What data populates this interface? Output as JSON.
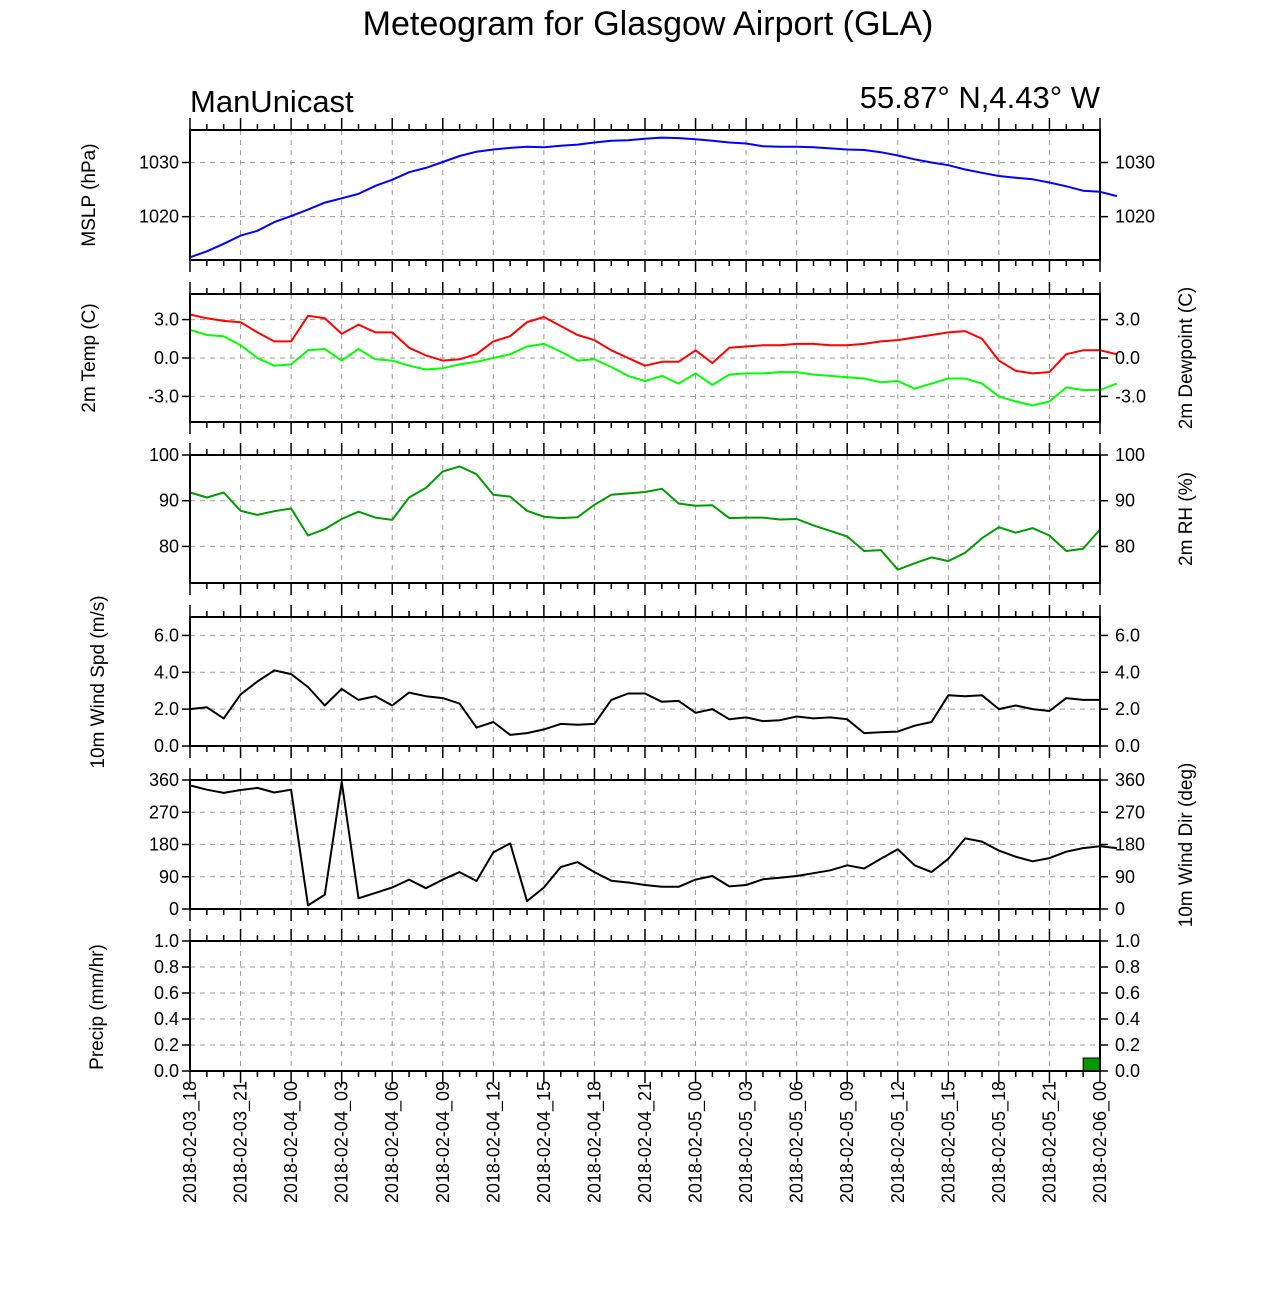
{
  "figure": {
    "title": "Meteogram for Glasgow Airport (GLA)",
    "model": "ManUnicast",
    "location": "55.87° N,4.43° W"
  },
  "time_axis": {
    "labels": [
      "2018-02-03_18",
      "2018-02-03_21",
      "2018-02-04_00",
      "2018-02-04_03",
      "2018-02-04_06",
      "2018-02-04_09",
      "2018-02-04_12",
      "2018-02-04_15",
      "2018-02-04_18",
      "2018-02-04_21",
      "2018-02-05_00",
      "2018-02-05_03",
      "2018-02-05_06",
      "2018-02-05_09",
      "2018-02-05_12",
      "2018-02-05_15",
      "2018-02-05_18",
      "2018-02-05_21",
      "2018-02-06_00"
    ],
    "range_hours": [
      0,
      54
    ],
    "step_hours": 1
  },
  "colors": {
    "mslp": "#0000ff",
    "temp": "#ff0000",
    "dewpoint": "#00ff00",
    "rh": "#009900",
    "wind": "#000000",
    "precip_fill": "#009900",
    "grid": "#9a9a9a"
  },
  "chart_data": [
    {
      "type": "line",
      "id": "mslp",
      "ylabel_left": "MSLP (hPa)",
      "ylim": [
        1012,
        1036
      ],
      "ticks": [
        1020,
        1030
      ],
      "tick_labels": [
        "1020",
        "1030"
      ],
      "right_ticks": true,
      "grid": true,
      "series": [
        {
          "color": "#0000ff",
          "values": [
            1012.5,
            1013.6,
            1015.0,
            1016.5,
            1017.4,
            1019.0,
            1020.1,
            1021.3,
            1022.6,
            1023.4,
            1024.2,
            1025.7,
            1026.8,
            1028.2,
            1029.0,
            1030.1,
            1031.2,
            1032.0,
            1032.4,
            1032.7,
            1032.9,
            1032.8,
            1033.1,
            1033.3,
            1033.7,
            1034.0,
            1034.1,
            1034.4,
            1034.6,
            1034.5,
            1034.3,
            1034.0,
            1033.7,
            1033.5,
            1033.0,
            1032.9,
            1032.9,
            1032.8,
            1032.6,
            1032.4,
            1032.3,
            1031.9,
            1031.3,
            1030.6,
            1030.0,
            1029.5,
            1028.7,
            1028.1,
            1027.5,
            1027.2,
            1026.9,
            1026.3,
            1025.6,
            1024.8,
            1024.6,
            1023.8
          ]
        }
      ]
    },
    {
      "type": "line",
      "id": "temp",
      "ylabel_left": "2m Temp (C)",
      "ylabel_right": "2m Dewpoint (C)",
      "ylim": [
        -5,
        5
      ],
      "ticks": [
        -3,
        0,
        3
      ],
      "tick_labels": [
        "-3.0",
        "0.0",
        "3.0"
      ],
      "right_ticks": true,
      "grid": true,
      "series": [
        {
          "color": "#ff0000",
          "values": [
            3.4,
            3.1,
            2.9,
            2.8,
            2.0,
            1.3,
            1.3,
            3.3,
            3.1,
            1.9,
            2.6,
            2.0,
            2.0,
            0.8,
            0.2,
            -0.2,
            -0.1,
            0.3,
            1.3,
            1.7,
            2.8,
            3.2,
            2.5,
            1.8,
            1.4,
            0.6,
            0.0,
            -0.6,
            -0.3,
            -0.3,
            0.6,
            -0.4,
            0.8,
            0.9,
            1.0,
            1.0,
            1.1,
            1.1,
            1.0,
            1.0,
            1.1,
            1.3,
            1.4,
            1.6,
            1.8,
            2.0,
            2.1,
            1.5,
            -0.2,
            -1.0,
            -1.2,
            -1.1,
            0.3,
            0.6,
            0.6,
            0.3
          ]
        },
        {
          "color": "#00ff00",
          "values": [
            2.2,
            1.8,
            1.7,
            1.0,
            0.0,
            -0.6,
            -0.5,
            0.6,
            0.7,
            -0.2,
            0.7,
            -0.1,
            -0.2,
            -0.6,
            -0.9,
            -0.8,
            -0.5,
            -0.3,
            0.0,
            0.3,
            0.9,
            1.1,
            0.5,
            -0.2,
            -0.1,
            -0.7,
            -1.4,
            -1.8,
            -1.4,
            -2.0,
            -1.2,
            -2.1,
            -1.3,
            -1.2,
            -1.2,
            -1.1,
            -1.1,
            -1.3,
            -1.4,
            -1.5,
            -1.6,
            -1.9,
            -1.8,
            -2.4,
            -2.0,
            -1.6,
            -1.6,
            -2.0,
            -3.0,
            -3.4,
            -3.7,
            -3.4,
            -2.3,
            -2.5,
            -2.5,
            -2.0
          ]
        }
      ]
    },
    {
      "type": "line",
      "id": "rh",
      "ylabel_right": "2m RH (%)",
      "ylim": [
        72,
        100
      ],
      "ticks": [
        80,
        90,
        100
      ],
      "tick_labels": [
        "80",
        "90",
        "100"
      ],
      "right_ticks": true,
      "grid": true,
      "series": [
        {
          "color": "#009900",
          "values": [
            91.8,
            90.7,
            91.8,
            87.8,
            86.9,
            87.7,
            88.3,
            82.4,
            83.8,
            86.0,
            87.6,
            86.3,
            85.8,
            90.7,
            92.8,
            96.4,
            97.5,
            95.8,
            91.3,
            90.9,
            87.8,
            86.5,
            86.2,
            86.4,
            89.1,
            91.3,
            91.6,
            91.9,
            92.6,
            89.4,
            88.9,
            89.0,
            86.2,
            86.3,
            86.3,
            85.9,
            86.0,
            84.6,
            83.4,
            82.2,
            79.0,
            79.2,
            74.9,
            76.3,
            77.6,
            76.8,
            78.6,
            81.8,
            84.2,
            83.0,
            84.0,
            82.4,
            79.0,
            79.5,
            83.7
          ]
        }
      ]
    },
    {
      "type": "line",
      "id": "wind_speed",
      "ylabel_left": "10m Wind Spd (m/s)",
      "ylim": [
        0,
        7
      ],
      "ticks": [
        0,
        2,
        4,
        6
      ],
      "tick_labels": [
        "0.0",
        "2.0",
        "4.0",
        "6.0"
      ],
      "right_ticks": true,
      "grid": true,
      "series": [
        {
          "color": "#000000",
          "values": [
            2.0,
            2.1,
            1.5,
            2.8,
            3.5,
            4.1,
            3.9,
            3.2,
            2.2,
            3.1,
            2.5,
            2.7,
            2.2,
            2.9,
            2.7,
            2.6,
            2.3,
            1.0,
            1.3,
            0.6,
            0.7,
            0.9,
            1.2,
            1.15,
            1.2,
            2.5,
            2.85,
            2.85,
            2.4,
            2.45,
            1.8,
            2.0,
            1.45,
            1.55,
            1.35,
            1.4,
            1.6,
            1.5,
            1.55,
            1.45,
            0.7,
            0.75,
            0.78,
            1.1,
            1.3,
            2.75,
            2.7,
            2.75,
            2.0,
            2.2,
            2.0,
            1.9,
            2.6,
            2.5,
            2.5
          ]
        }
      ]
    },
    {
      "type": "line",
      "id": "wind_dir",
      "ylabel_right": "10m Wind Dir (deg)",
      "ylim": [
        0,
        360
      ],
      "ticks": [
        0,
        90,
        180,
        270,
        360
      ],
      "tick_labels": [
        "0",
        "90",
        "180",
        "270",
        "360"
      ],
      "right_ticks": true,
      "grid": true,
      "series": [
        {
          "color": "#000000",
          "values": [
            345,
            333,
            324,
            332,
            338,
            325,
            333,
            10,
            40,
            355,
            30,
            45,
            60,
            82,
            58,
            82,
            103,
            78,
            158,
            183,
            22,
            60,
            117,
            131,
            103,
            79,
            74,
            67,
            62,
            62,
            82,
            92,
            63,
            67,
            83,
            87,
            92,
            100,
            108,
            122,
            113,
            140,
            167,
            122,
            103,
            140,
            197,
            188,
            163,
            146,
            133,
            142,
            160,
            170,
            175,
            170
          ]
        }
      ]
    },
    {
      "type": "bar",
      "id": "precip",
      "ylabel_left": "Precip (mm/hr)",
      "ylim": [
        0,
        1
      ],
      "ticks": [
        0,
        0.2,
        0.4,
        0.6,
        0.8,
        1.0
      ],
      "tick_labels": [
        "0.0",
        "0.2",
        "0.4",
        "0.6",
        "0.8",
        "1.0"
      ],
      "right_ticks": true,
      "grid": true,
      "bars": [
        {
          "x_start": 53,
          "x_end": 54,
          "value": 0.1,
          "color": "#009900"
        }
      ]
    }
  ]
}
